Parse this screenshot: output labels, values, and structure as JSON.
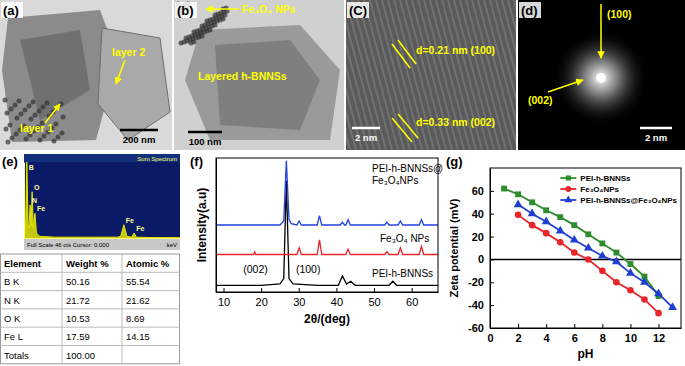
{
  "panels": [
    {
      "label": "(a)",
      "annotations": [
        "layer 2",
        "layer 1"
      ],
      "scale_bar": "200 nm"
    },
    {
      "label": "(b)",
      "annotations": [
        "Fe₃O₄ NPs",
        "Layered h-BNNSs"
      ],
      "scale_bar": "100 nm"
    },
    {
      "label": "(C)",
      "annotations": [
        "d=0.21 nm (100)",
        "d=0.33 nm (002)"
      ],
      "scale_bar": "2 nm"
    },
    {
      "label": "(d)",
      "annotations": [
        "(100)",
        "(002)"
      ],
      "scale_bar": "2 nm"
    }
  ],
  "eds_table": {
    "header": [
      "Element",
      "Weight %",
      "Atomic %"
    ],
    "rows": [
      [
        "B K",
        "50.16",
        "55.54"
      ],
      [
        "N K",
        "21.72",
        "21.62"
      ],
      [
        "O K",
        "10.53",
        "8.69"
      ],
      [
        "Fe L",
        "17.59",
        "14.15"
      ],
      [
        "Totals",
        "100.00",
        null
      ]
    ]
  },
  "chart_data": [
    {
      "type": "area",
      "title": "(e)",
      "subtitle": "Sum Spectrum",
      "x_label": "keV",
      "caption": "Full Scale 46 cts Cursor: 0.000",
      "x": [
        0,
        0.1,
        0.18,
        0.26,
        0.32,
        0.39,
        0.45,
        0.52,
        0.6,
        0.7,
        0.8,
        1,
        2,
        4,
        6,
        6.2,
        6.4,
        6.6,
        6.9,
        7.06,
        7.2,
        8,
        10
      ],
      "values": [
        0,
        5,
        46,
        8,
        6,
        20,
        7,
        28,
        6,
        15,
        3,
        1,
        0.5,
        0.5,
        0.5,
        1,
        8,
        1,
        0.5,
        3,
        0.5,
        0.3,
        0.2
      ],
      "color": "#e6e600",
      "xlim": [
        0,
        10
      ],
      "ylim": [
        0,
        46
      ],
      "tick_labels": false,
      "annotations": [
        {
          "text": "B",
          "x": 0.18,
          "y": 46
        },
        {
          "text": "N",
          "x": 0.39,
          "y": 20
        },
        {
          "text": "O",
          "x": 0.52,
          "y": 28
        },
        {
          "text": "Fe",
          "x": 0.7,
          "y": 15
        },
        {
          "text": "Fe",
          "x": 6.4,
          "y": 8
        },
        {
          "text": "Fe",
          "x": 7.06,
          "y": 3
        }
      ]
    },
    {
      "type": "line",
      "title": "(f)",
      "x_label": "2θ/(deg)",
      "y_label": "Intensity(a.u)",
      "xlim": [
        8,
        67
      ],
      "ylim": [
        0,
        100
      ],
      "xticks": [
        10,
        20,
        30,
        40,
        50,
        60
      ],
      "tick_labels": "x",
      "annotations": [
        {
          "text": "(002)",
          "x": 18.5,
          "y": 14
        },
        {
          "text": "(100)",
          "x": 32.5,
          "y": 14
        }
      ],
      "series": [
        {
          "name": "PEI-h-BNNSs",
          "color": "#000000",
          "x": [
            8,
            20,
            25,
            26,
            26.7,
            27.4,
            28.5,
            35,
            40.5,
            41.6,
            42.7,
            43.8,
            45,
            54,
            55,
            56,
            60,
            67
          ],
          "values": [
            5,
            5,
            6,
            10,
            83,
            10,
            6,
            5,
            5,
            12,
            6,
            8,
            5,
            5,
            8,
            5,
            5,
            5
          ]
        },
        {
          "name": "Fe₃O₄ NPs",
          "color": "#e8262a",
          "x": [
            8,
            18,
            18.3,
            18.6,
            29.5,
            30.1,
            30.7,
            34.9,
            35.5,
            36.1,
            42.5,
            43.1,
            43.7,
            52.8,
            53.4,
            54,
            56.4,
            57,
            57.6,
            62,
            62.6,
            63.2,
            67
          ],
          "values": [
            28,
            28,
            30,
            28,
            28,
            33,
            28,
            28,
            39,
            28,
            28,
            32,
            28,
            28,
            30,
            28,
            28,
            33,
            28,
            28,
            34,
            28,
            28
          ]
        },
        {
          "name": "PEI-h-BNNSs@Fe₃O₄NPs",
          "color": "#2040e0",
          "x": [
            8,
            25,
            26,
            26.7,
            27.4,
            28,
            29.5,
            30.1,
            30.7,
            34.9,
            35.5,
            36.1,
            41,
            41.6,
            42.2,
            42.5,
            43.1,
            43.7,
            52.8,
            53.4,
            54,
            56.4,
            57,
            57.6,
            62,
            62.6,
            63.2,
            67
          ],
          "values": [
            50,
            50,
            53,
            98,
            54,
            51,
            50,
            53,
            50,
            50,
            57,
            50,
            50,
            52,
            50,
            50,
            54,
            50,
            50,
            52,
            50,
            50,
            53,
            50,
            50,
            54,
            50,
            50
          ]
        }
      ]
    },
    {
      "type": "line",
      "title": "(g)",
      "x_label": "pH",
      "y_label": "Zeta potential (mV)",
      "xlim": [
        0,
        13.6
      ],
      "ylim": [
        -60,
        80
      ],
      "xticks": [
        0,
        2,
        4,
        6,
        8,
        10,
        12
      ],
      "yticks": [
        -60,
        -40,
        -20,
        0,
        20,
        40,
        60
      ],
      "legend": "upper right",
      "series": [
        {
          "name": "PEI-h-BNNSs",
          "color": "#2e8b2e",
          "marker": "square",
          "x": [
            1,
            2,
            3,
            4,
            5,
            6,
            7,
            8,
            9,
            10,
            11,
            12
          ],
          "values": [
            62,
            57,
            50,
            43,
            37,
            30,
            22,
            14,
            6,
            -4,
            -15,
            -32
          ]
        },
        {
          "name": "Fe₃O₄NPs",
          "color": "#e8262a",
          "marker": "circle",
          "x": [
            2,
            3,
            4,
            5,
            6,
            7,
            8,
            9,
            10,
            11,
            12
          ],
          "values": [
            39,
            30,
            23,
            15,
            6,
            0,
            -10,
            -20,
            -27,
            -35,
            -47
          ]
        },
        {
          "name": "PEI-h-BNNSs@Fe₃O₄NPs",
          "color": "#1f3fd0",
          "marker": "triangle",
          "x": [
            2,
            3,
            4,
            5,
            6,
            7,
            8,
            9,
            10,
            11,
            12,
            13
          ],
          "values": [
            48,
            40,
            33,
            25,
            17,
            10,
            3,
            -2,
            -12,
            -20,
            -30,
            -42
          ]
        }
      ]
    }
  ]
}
